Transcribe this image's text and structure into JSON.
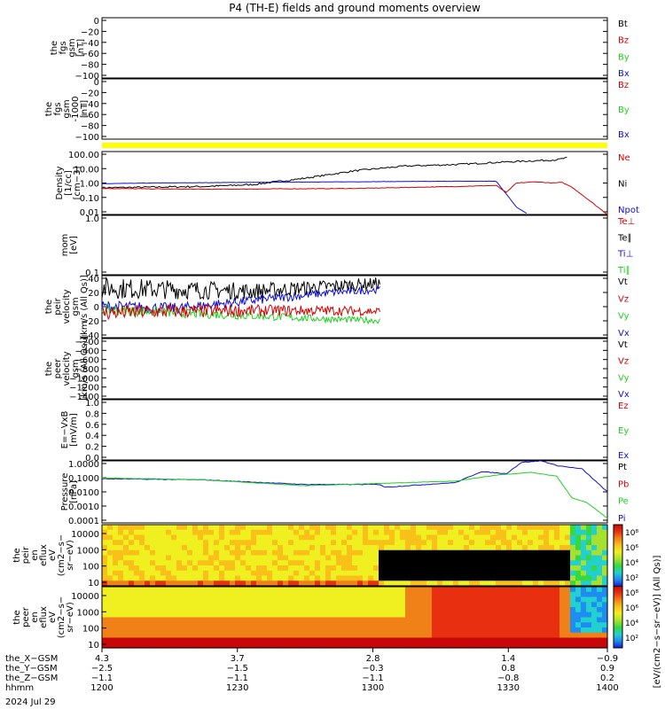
{
  "title": "P4 (TH-E) fields and ground moments overview",
  "colors": {
    "black": "#000000",
    "red": "#d40000",
    "green": "#1fd01f",
    "blue": "#1010d0",
    "yellow": "#ffff00"
  },
  "chart_data": [
    {
      "type": "line",
      "ylabel": [
        "the",
        "fgs",
        "gsm",
        "[nT]"
      ],
      "ylim": [
        -100,
        0
      ],
      "ytick_labels": [
        "0",
        "−20",
        "−40",
        "−60",
        "−80",
        "−100"
      ],
      "legend": [
        {
          "label": "Bt",
          "color": "black"
        },
        {
          "label": "Bz",
          "color": "red"
        },
        {
          "label": "By",
          "color": "green"
        },
        {
          "label": "Bx",
          "color": "blue"
        }
      ],
      "series": []
    },
    {
      "type": "line",
      "ylabel": [
        "the",
        "fgs",
        "gsm",
        "-1000",
        "[nT]"
      ],
      "ylim": [
        -110,
        0
      ],
      "ytick_labels": [
        "0",
        "−20",
        "−40",
        "−60",
        "−80",
        "−100"
      ],
      "legend": [
        {
          "label": "Bz",
          "color": "red"
        },
        {
          "label": "By",
          "color": "green"
        },
        {
          "label": "Bx",
          "color": "blue"
        }
      ],
      "series": []
    },
    {
      "type": "line",
      "ylabel": [
        "Density",
        "[1/cc]",
        "[cm−3]"
      ],
      "yscale": "log",
      "ylim": [
        0.01,
        100
      ],
      "ytick_labels": [
        "100.00",
        "10.00",
        "1.00",
        "0.10",
        "0.01"
      ],
      "legend": [
        {
          "label": "Ne",
          "color": "red"
        },
        {
          "label": "Ni",
          "color": "black"
        },
        {
          "label": "Npot",
          "color": "blue"
        }
      ],
      "series": [
        {
          "name": "Ni",
          "color": "black",
          "noise": 0.12,
          "x": [
            0,
            0.1,
            0.2,
            0.3,
            0.4,
            0.5,
            0.6,
            0.7,
            0.8,
            0.9,
            0.92
          ],
          "y": [
            0.5,
            0.55,
            0.6,
            0.8,
            2.0,
            6.0,
            12.0,
            15.0,
            22.0,
            30.0,
            40.0
          ]
        },
        {
          "name": "Npot",
          "color": "blue",
          "noise": 0.02,
          "x": [
            0,
            0.1,
            0.3,
            0.5,
            0.7,
            0.78,
            0.8,
            0.82,
            0.84
          ],
          "y": [
            0.9,
            1.0,
            1.1,
            1.2,
            1.3,
            1.3,
            0.2,
            0.03,
            0.012
          ]
        },
        {
          "name": "Ne",
          "color": "red",
          "noise": 0.04,
          "x": [
            0,
            0.2,
            0.5,
            0.7,
            0.78,
            0.8,
            0.82,
            0.86,
            0.89,
            0.91,
            0.93,
            0.96,
            1.0
          ],
          "y": [
            0.45,
            0.4,
            0.45,
            0.6,
            0.7,
            0.25,
            1.0,
            1.2,
            1.0,
            1.1,
            0.55,
            0.1,
            0.01
          ]
        }
      ]
    },
    {
      "type": "line",
      "ylabel": [
        "mom",
        "[eV]"
      ],
      "yscale": "log",
      "ylim": [
        0.1,
        1.0
      ],
      "ytick_labels": [
        "1.0",
        "0.1"
      ],
      "legend": [
        {
          "label": "Te⊥",
          "color": "red"
        },
        {
          "label": "Te∥",
          "color": "black"
        },
        {
          "label": "Ti⊥",
          "color": "blue"
        },
        {
          "label": "Ti∥",
          "color": "green"
        }
      ],
      "series": []
    },
    {
      "type": "line",
      "ylabel": [
        "the",
        "peir",
        "velocity",
        "gsm",
        "[km/s (All Qs)]"
      ],
      "ylim": [
        -40,
        40
      ],
      "ytick_labels": [
        "40",
        "20",
        "0",
        "−20",
        "−40"
      ],
      "legend": [
        {
          "label": "Vt",
          "color": "black"
        },
        {
          "label": "Vz",
          "color": "red"
        },
        {
          "label": "Vy",
          "color": "green"
        },
        {
          "label": "Vx",
          "color": "blue"
        }
      ],
      "series": [
        {
          "name": "Vt",
          "color": "black",
          "noise": 14,
          "x": [
            0,
            0.15,
            0.3,
            0.45,
            0.55
          ],
          "y": [
            24,
            22,
            20,
            26,
            30
          ]
        },
        {
          "name": "Vx",
          "color": "blue",
          "noise": 8,
          "x": [
            0,
            0.15,
            0.3,
            0.45,
            0.55
          ],
          "y": [
            0,
            -2,
            8,
            18,
            22
          ]
        },
        {
          "name": "Vy",
          "color": "green",
          "noise": 7,
          "x": [
            0,
            0.15,
            0.3,
            0.45,
            0.55
          ],
          "y": [
            -4,
            -8,
            -12,
            -16,
            -18
          ]
        },
        {
          "name": "Vz",
          "color": "red",
          "noise": 10,
          "x": [
            0,
            0.15,
            0.3,
            0.45,
            0.55
          ],
          "y": [
            -8,
            -6,
            -5,
            -5,
            -6
          ]
        }
      ]
    },
    {
      "type": "line",
      "ylabel": [
        "the",
        "peer",
        "velocity",
        "gsm",
        "[km/s (All Qs)]"
      ],
      "ylim": [
        -1400,
        0
      ],
      "ytick_labels": [
        "−200",
        "−400",
        "−600",
        "−800",
        "−1000",
        "−1200",
        "−1400"
      ],
      "legend": [
        {
          "label": "Vt",
          "color": "black"
        },
        {
          "label": "Vz",
          "color": "red"
        },
        {
          "label": "Vy",
          "color": "green"
        },
        {
          "label": "Vx",
          "color": "blue"
        }
      ],
      "series": []
    },
    {
      "type": "line",
      "ylabel": [
        "E=−VxB",
        "[mV/m]"
      ],
      "ylim": [
        0,
        1
      ],
      "ytick_labels": [
        "1.0",
        "0.8",
        "0.6",
        "0.4",
        "0.2",
        "0.0"
      ],
      "legend": [
        {
          "label": "Ez",
          "color": "red"
        },
        {
          "label": "Ey",
          "color": "green"
        },
        {
          "label": "Ex",
          "color": "blue"
        }
      ],
      "series": []
    },
    {
      "type": "line",
      "ylabel": [
        "Pressure",
        "[nPa]"
      ],
      "yscale": "log",
      "ylim": [
        0.0001,
        1.0
      ],
      "ytick_labels": [
        "1.0000",
        "0.1000",
        "0.0100",
        "0.0010",
        "0.0001"
      ],
      "legend": [
        {
          "label": "Pt",
          "color": "black"
        },
        {
          "label": "Pb",
          "color": "red"
        },
        {
          "label": "Pe",
          "color": "green"
        },
        {
          "label": "Pi",
          "color": "blue"
        }
      ],
      "series": [
        {
          "name": "Pi",
          "color": "blue",
          "noise": 0.05,
          "x": [
            0,
            0.2,
            0.4,
            0.55,
            0.56,
            0.7,
            0.75,
            0.8,
            0.83,
            0.87,
            0.9,
            0.95,
            1.0
          ],
          "y": [
            0.07,
            0.06,
            0.03,
            0.03,
            0.02,
            0.04,
            0.2,
            0.15,
            0.8,
            1.0,
            0.5,
            0.3,
            0.01
          ]
        },
        {
          "name": "Pe",
          "color": "green",
          "noise": 0.03,
          "x": [
            0,
            0.2,
            0.4,
            0.55,
            0.7,
            0.78,
            0.85,
            0.9,
            0.93,
            0.96,
            1.0
          ],
          "y": [
            0.08,
            0.06,
            0.025,
            0.035,
            0.05,
            0.12,
            0.18,
            0.1,
            0.004,
            0.002,
            0.0002
          ]
        }
      ]
    }
  ],
  "spectrograms": [
    {
      "type": "heatmap",
      "ylabel": [
        "the",
        "peir",
        "en",
        "eflux",
        "eV",
        "(cm2−s−",
        "sr−eV)"
      ],
      "yscale": "log",
      "ytick_labels": [
        "10000",
        "1000",
        "100",
        "10"
      ]
    },
    {
      "type": "heatmap",
      "ylabel": [
        "the",
        "peer",
        "en",
        "eflux",
        "eV",
        "(cm2−s−",
        "sr−eV)"
      ],
      "yscale": "log",
      "ytick_labels": [
        "10000",
        "1000",
        "100",
        "10"
      ]
    }
  ],
  "colorbar": {
    "label": "[eV/(cm2−s−sr−eV)] (All Qs)]",
    "ticks": [
      "10⁸",
      "10⁶",
      "10⁴",
      "10²",
      "10⁸",
      "10⁶",
      "10⁴",
      "10²"
    ]
  },
  "x_axis": {
    "rows": [
      {
        "label": "the_X−GSM",
        "values": [
          "4.3",
          "3.7",
          "2.8",
          "1.4",
          "−0.9"
        ]
      },
      {
        "label": "the_Y−GSM",
        "values": [
          "−2.5",
          "−1.5",
          "−0.3",
          "0.8",
          "0.9"
        ]
      },
      {
        "label": "the_Z−GSM",
        "values": [
          "−1.1",
          "−1.1",
          "−1.1",
          "−0.8",
          "0.2"
        ]
      },
      {
        "label": "hhmm",
        "values": [
          "1200",
          "1230",
          "1300",
          "1330",
          "1400"
        ]
      }
    ],
    "date": "2024 Jul 29"
  }
}
